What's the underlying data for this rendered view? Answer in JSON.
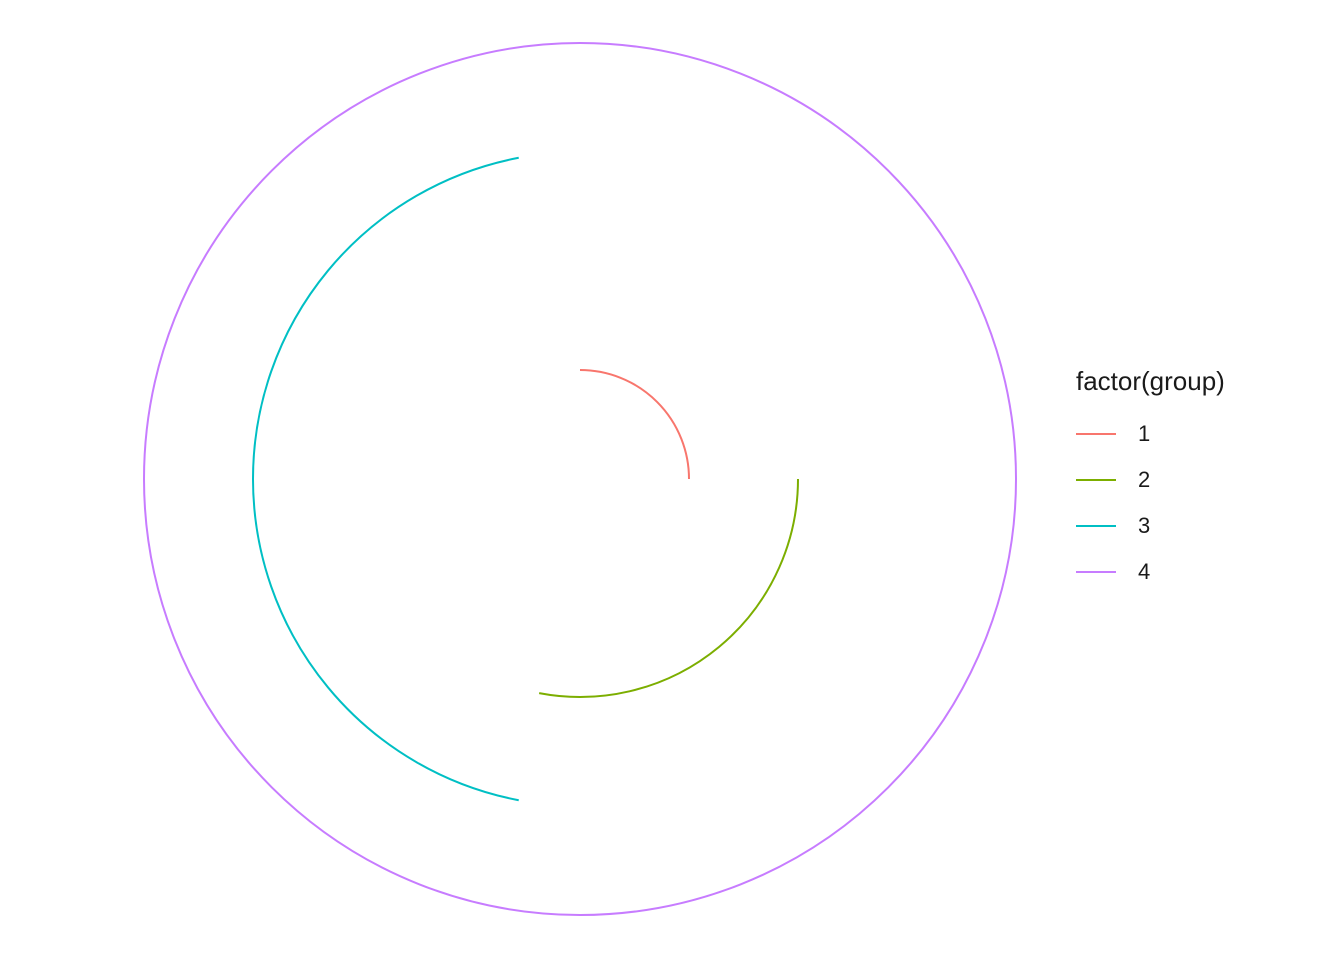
{
  "chart_data": {
    "type": "line",
    "coord": "polar",
    "title": "",
    "xlabel": "",
    "ylabel": "",
    "grid": false,
    "legend": {
      "title": "factor(group)",
      "placement": "right",
      "entries": [
        "1",
        "2",
        "3",
        "4"
      ]
    },
    "series": [
      {
        "name": "1",
        "color": "#F8766D",
        "radius": 1,
        "theta_start": 0,
        "theta_end": 0.25
      },
      {
        "name": "2",
        "color": "#7CAE00",
        "radius": 2,
        "theta_start": 0.25,
        "theta_end": 0.53
      },
      {
        "name": "3",
        "color": "#00BFC4",
        "radius": 3,
        "theta_start": 0.53,
        "theta_end": 0.97
      },
      {
        "name": "4",
        "color": "#C77CFF",
        "radius": 4,
        "theta_start": 0,
        "theta_end": 1
      }
    ]
  }
}
